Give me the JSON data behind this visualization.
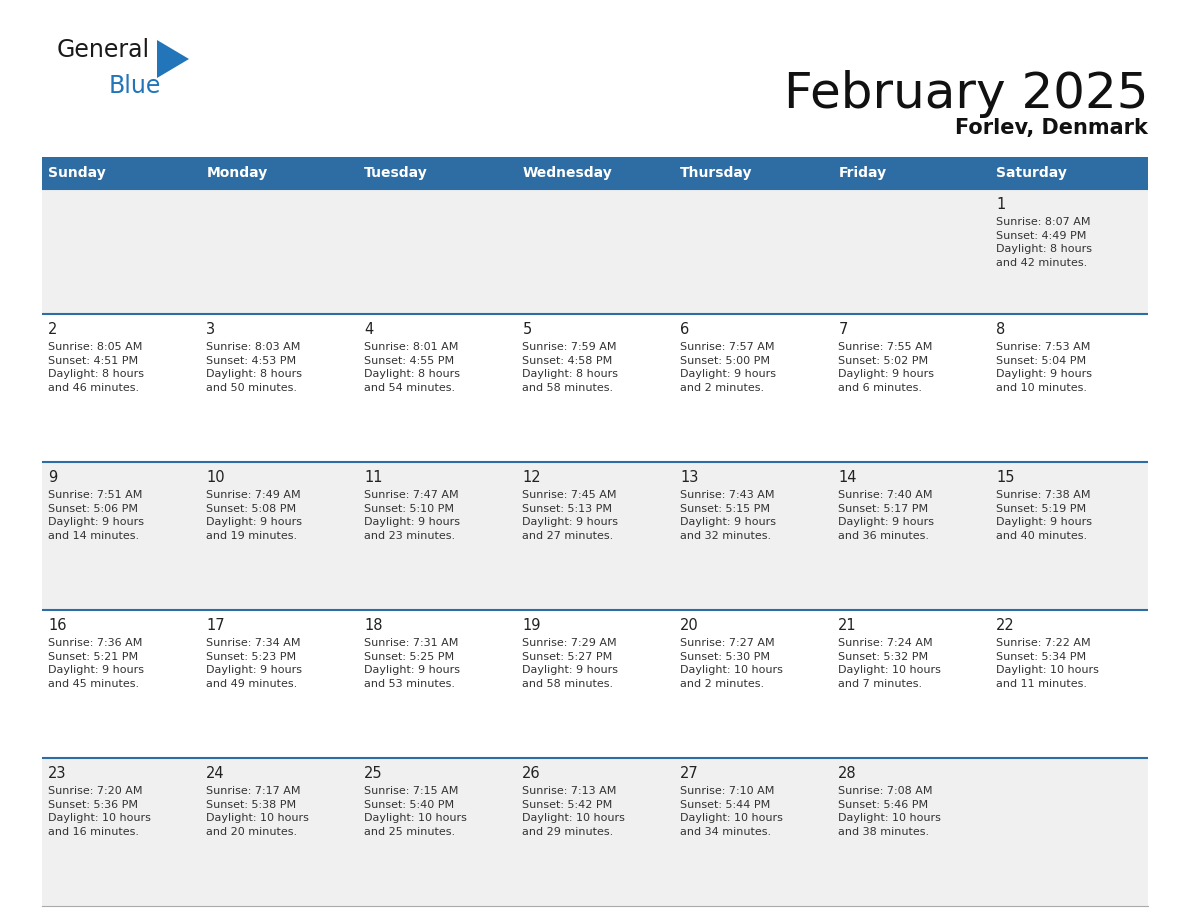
{
  "title": "February 2025",
  "subtitle": "Forlev, Denmark",
  "header_bg": "#2E6DA4",
  "header_text_color": "#FFFFFF",
  "cell_bg_row0": "#F0F0F0",
  "cell_bg_row1": "#FFFFFF",
  "cell_bg_row2": "#F0F0F0",
  "cell_bg_row3": "#FFFFFF",
  "cell_bg_row4": "#F0F0F0",
  "row_line_color": "#2E6DA4",
  "days_of_week": [
    "Sunday",
    "Monday",
    "Tuesday",
    "Wednesday",
    "Thursday",
    "Friday",
    "Saturday"
  ],
  "calendar_data": [
    [
      {
        "day": "",
        "info": ""
      },
      {
        "day": "",
        "info": ""
      },
      {
        "day": "",
        "info": ""
      },
      {
        "day": "",
        "info": ""
      },
      {
        "day": "",
        "info": ""
      },
      {
        "day": "",
        "info": ""
      },
      {
        "day": "1",
        "info": "Sunrise: 8:07 AM\nSunset: 4:49 PM\nDaylight: 8 hours\nand 42 minutes."
      }
    ],
    [
      {
        "day": "2",
        "info": "Sunrise: 8:05 AM\nSunset: 4:51 PM\nDaylight: 8 hours\nand 46 minutes."
      },
      {
        "day": "3",
        "info": "Sunrise: 8:03 AM\nSunset: 4:53 PM\nDaylight: 8 hours\nand 50 minutes."
      },
      {
        "day": "4",
        "info": "Sunrise: 8:01 AM\nSunset: 4:55 PM\nDaylight: 8 hours\nand 54 minutes."
      },
      {
        "day": "5",
        "info": "Sunrise: 7:59 AM\nSunset: 4:58 PM\nDaylight: 8 hours\nand 58 minutes."
      },
      {
        "day": "6",
        "info": "Sunrise: 7:57 AM\nSunset: 5:00 PM\nDaylight: 9 hours\nand 2 minutes."
      },
      {
        "day": "7",
        "info": "Sunrise: 7:55 AM\nSunset: 5:02 PM\nDaylight: 9 hours\nand 6 minutes."
      },
      {
        "day": "8",
        "info": "Sunrise: 7:53 AM\nSunset: 5:04 PM\nDaylight: 9 hours\nand 10 minutes."
      }
    ],
    [
      {
        "day": "9",
        "info": "Sunrise: 7:51 AM\nSunset: 5:06 PM\nDaylight: 9 hours\nand 14 minutes."
      },
      {
        "day": "10",
        "info": "Sunrise: 7:49 AM\nSunset: 5:08 PM\nDaylight: 9 hours\nand 19 minutes."
      },
      {
        "day": "11",
        "info": "Sunrise: 7:47 AM\nSunset: 5:10 PM\nDaylight: 9 hours\nand 23 minutes."
      },
      {
        "day": "12",
        "info": "Sunrise: 7:45 AM\nSunset: 5:13 PM\nDaylight: 9 hours\nand 27 minutes."
      },
      {
        "day": "13",
        "info": "Sunrise: 7:43 AM\nSunset: 5:15 PM\nDaylight: 9 hours\nand 32 minutes."
      },
      {
        "day": "14",
        "info": "Sunrise: 7:40 AM\nSunset: 5:17 PM\nDaylight: 9 hours\nand 36 minutes."
      },
      {
        "day": "15",
        "info": "Sunrise: 7:38 AM\nSunset: 5:19 PM\nDaylight: 9 hours\nand 40 minutes."
      }
    ],
    [
      {
        "day": "16",
        "info": "Sunrise: 7:36 AM\nSunset: 5:21 PM\nDaylight: 9 hours\nand 45 minutes."
      },
      {
        "day": "17",
        "info": "Sunrise: 7:34 AM\nSunset: 5:23 PM\nDaylight: 9 hours\nand 49 minutes."
      },
      {
        "day": "18",
        "info": "Sunrise: 7:31 AM\nSunset: 5:25 PM\nDaylight: 9 hours\nand 53 minutes."
      },
      {
        "day": "19",
        "info": "Sunrise: 7:29 AM\nSunset: 5:27 PM\nDaylight: 9 hours\nand 58 minutes."
      },
      {
        "day": "20",
        "info": "Sunrise: 7:27 AM\nSunset: 5:30 PM\nDaylight: 10 hours\nand 2 minutes."
      },
      {
        "day": "21",
        "info": "Sunrise: 7:24 AM\nSunset: 5:32 PM\nDaylight: 10 hours\nand 7 minutes."
      },
      {
        "day": "22",
        "info": "Sunrise: 7:22 AM\nSunset: 5:34 PM\nDaylight: 10 hours\nand 11 minutes."
      }
    ],
    [
      {
        "day": "23",
        "info": "Sunrise: 7:20 AM\nSunset: 5:36 PM\nDaylight: 10 hours\nand 16 minutes."
      },
      {
        "day": "24",
        "info": "Sunrise: 7:17 AM\nSunset: 5:38 PM\nDaylight: 10 hours\nand 20 minutes."
      },
      {
        "day": "25",
        "info": "Sunrise: 7:15 AM\nSunset: 5:40 PM\nDaylight: 10 hours\nand 25 minutes."
      },
      {
        "day": "26",
        "info": "Sunrise: 7:13 AM\nSunset: 5:42 PM\nDaylight: 10 hours\nand 29 minutes."
      },
      {
        "day": "27",
        "info": "Sunrise: 7:10 AM\nSunset: 5:44 PM\nDaylight: 10 hours\nand 34 minutes."
      },
      {
        "day": "28",
        "info": "Sunrise: 7:08 AM\nSunset: 5:46 PM\nDaylight: 10 hours\nand 38 minutes."
      },
      {
        "day": "",
        "info": ""
      }
    ]
  ],
  "logo_general_color": "#1a1a1a",
  "logo_blue_color": "#2275B8",
  "logo_triangle_color": "#2275B8"
}
